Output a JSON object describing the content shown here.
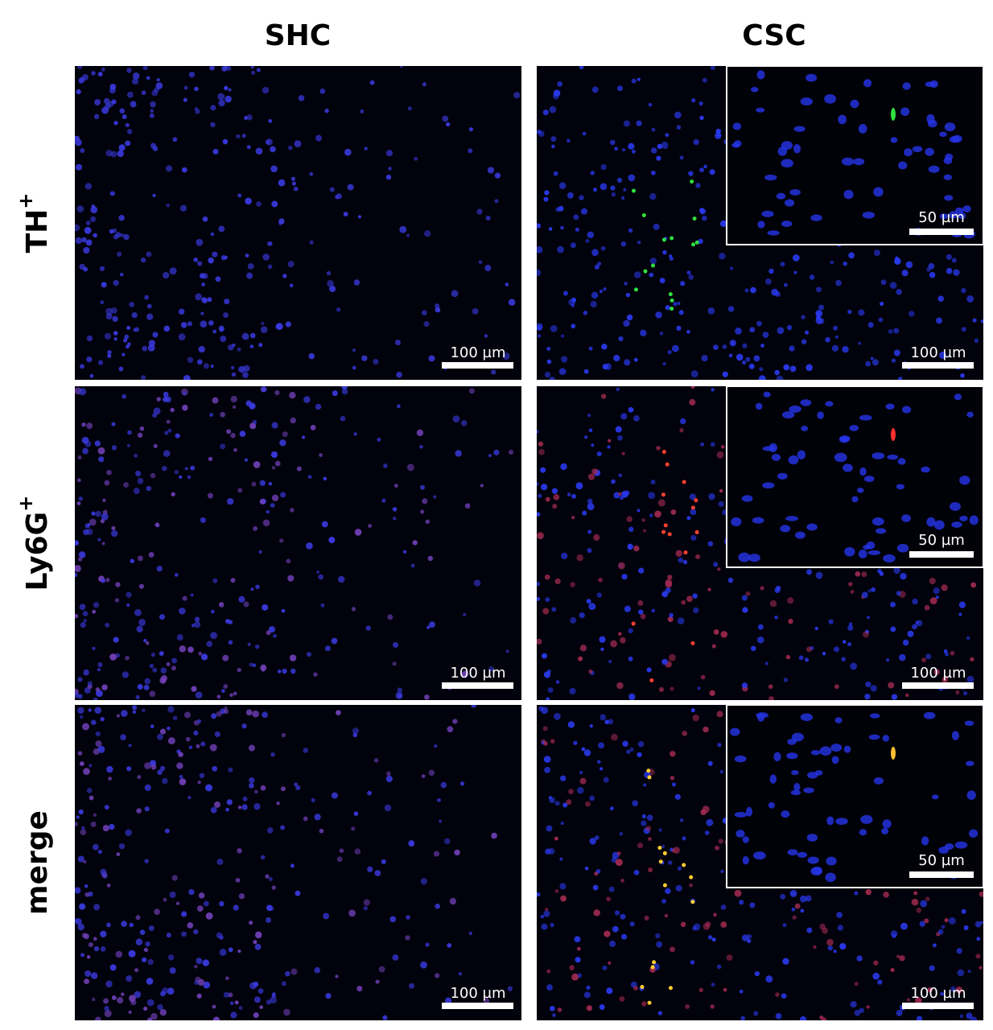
{
  "column_titles": [
    "SHC",
    "CSC"
  ],
  "rows": [
    {
      "label": "TH",
      "superscript": "+",
      "panels": [
        {
          "scale_bar": "100 µm"
        },
        {
          "scale_bar": "100 µm",
          "inset_scale_bar": "50 µm"
        }
      ]
    },
    {
      "label": "Ly6G",
      "superscript": "+",
      "panels": [
        {
          "scale_bar": "100 µm"
        },
        {
          "scale_bar": "100 µm",
          "inset_scale_bar": "50 µm"
        }
      ]
    },
    {
      "label": "merge",
      "panels": [
        {
          "scale_bar": "100 µm"
        },
        {
          "scale_bar": "100 µm",
          "inset_scale_bar": "50 µm"
        }
      ]
    }
  ]
}
